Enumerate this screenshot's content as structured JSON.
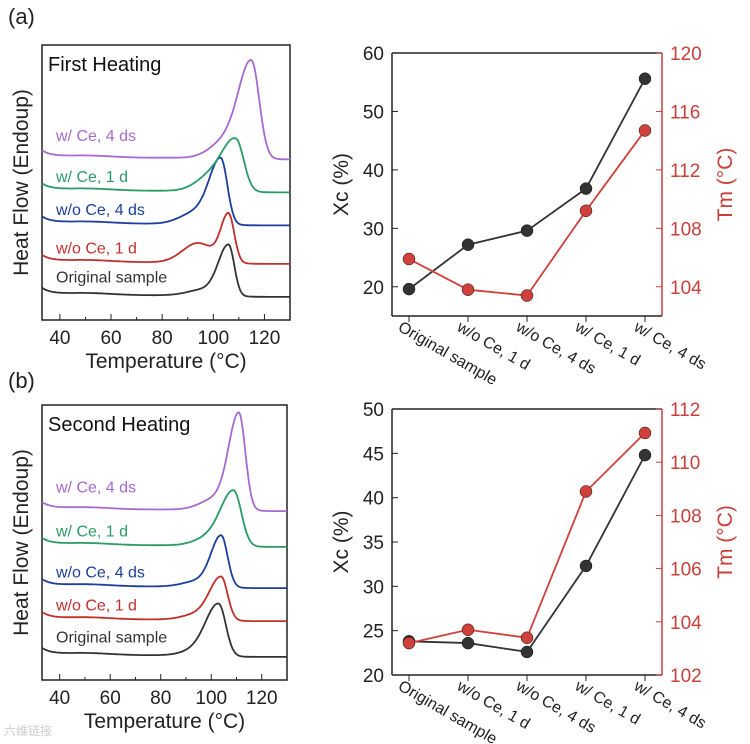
{
  "panels": [
    {
      "label": "(a)"
    },
    {
      "label": "(b)"
    }
  ],
  "watermark": "六维链接",
  "chart_data": [
    {
      "type": "line",
      "title": "First Heating",
      "xlabel": "Temperature (°C)",
      "ylabel": "Heat Flow (Endoup)",
      "xlim": [
        33,
        130
      ],
      "xticks": [
        40,
        60,
        80,
        100,
        120
      ],
      "ylim": [
        0,
        100
      ],
      "series": [
        {
          "name": "Original sample",
          "color": "#333333",
          "offset": 9,
          "peak_temp": 106,
          "peak_height": 18,
          "sigma_left": 4,
          "sigma_right": 2.2,
          "shoulder_temp": 96,
          "shoulder_height": 2
        },
        {
          "name": "w/o Ce, 1 d",
          "color": "#c0302c",
          "offset": 21,
          "peak_temp": 106,
          "peak_height": 17,
          "sigma_left": 3,
          "sigma_right": 2.2,
          "shoulder_temp": 94,
          "shoulder_height": 7
        },
        {
          "name": "w/o Ce, 4 ds",
          "color": "#1c3f9c",
          "offset": 35,
          "peak_temp": 103,
          "peak_height": 23,
          "sigma_left": 4.5,
          "sigma_right": 2.5,
          "shoulder_temp": 93,
          "shoulder_height": 4
        },
        {
          "name": "w/ Ce, 1 d",
          "color": "#2a9a68",
          "offset": 47,
          "peak_temp": 109,
          "peak_height": 17,
          "sigma_left": 5,
          "sigma_right": 3,
          "shoulder_temp": 100,
          "shoulder_height": 6
        },
        {
          "name": "w/ Ce, 4 ds",
          "color": "#a66ad0",
          "offset": 59,
          "peak_temp": 115,
          "peak_height": 34,
          "sigma_left": 5,
          "sigma_right": 3,
          "shoulder_temp": 105,
          "shoulder_height": 6
        }
      ]
    },
    {
      "type": "line",
      "categories": [
        "Original sample",
        "w/o Ce, 1 d",
        "w/o Ce, 4 ds",
        "w/ Ce, 1 d",
        "w/ Ce, 4 ds"
      ],
      "ylabel": "Xc (%)",
      "ylim": [
        15,
        60
      ],
      "yticks": [
        20,
        30,
        40,
        50,
        60
      ],
      "y2label": "Tm (°C)",
      "y2lim": [
        102,
        120
      ],
      "y2ticks": [
        104,
        108,
        112,
        116,
        120
      ],
      "series": [
        {
          "name": "Xc",
          "axis": "left",
          "color": "#333333",
          "values": [
            19.6,
            27.2,
            29.6,
            36.8,
            55.6
          ]
        },
        {
          "name": "Tm",
          "axis": "right",
          "color": "#d0413c",
          "values": [
            105.9,
            103.8,
            103.4,
            109.2,
            114.7
          ]
        }
      ]
    },
    {
      "type": "line",
      "title": "Second Heating",
      "xlabel": "Temperature (°C)",
      "ylabel": "Heat Flow (Endoup)",
      "xlim": [
        33,
        130
      ],
      "xticks": [
        40,
        60,
        80,
        100,
        120
      ],
      "ylim": [
        0,
        100
      ],
      "series": [
        {
          "name": "Original sample",
          "color": "#333333",
          "offset": 9,
          "peak_temp": 103,
          "peak_height": 18,
          "sigma_left": 5,
          "sigma_right": 2.8,
          "shoulder_temp": 95,
          "shoulder_height": 2
        },
        {
          "name": "w/o Ce, 1 d",
          "color": "#c0302c",
          "offset": 22,
          "peak_temp": 104,
          "peak_height": 15,
          "sigma_left": 4.5,
          "sigma_right": 2.5,
          "shoulder_temp": 95,
          "shoulder_height": 2
        },
        {
          "name": "w/o Ce, 4 ds",
          "color": "#1c3f9c",
          "offset": 34,
          "peak_temp": 104,
          "peak_height": 18,
          "sigma_left": 4,
          "sigma_right": 2.5,
          "shoulder_temp": 95,
          "shoulder_height": 2
        },
        {
          "name": "w/ Ce, 1 d",
          "color": "#2a9a68",
          "offset": 49,
          "peak_temp": 109,
          "peak_height": 19,
          "sigma_left": 5,
          "sigma_right": 3,
          "shoulder_temp": 100,
          "shoulder_height": 3
        },
        {
          "name": "w/ Ce, 4 ds",
          "color": "#a66ad0",
          "offset": 62,
          "peak_temp": 111,
          "peak_height": 34,
          "sigma_left": 4,
          "sigma_right": 2.5,
          "shoulder_temp": 102,
          "shoulder_height": 4
        }
      ]
    },
    {
      "type": "line",
      "categories": [
        "Original sample",
        "w/o Ce, 1 d",
        "w/o Ce, 4 ds",
        "w/ Ce, 1 d",
        "w/ Ce, 4 ds"
      ],
      "ylabel": "Xc (%)",
      "ylim": [
        20,
        50
      ],
      "yticks": [
        20,
        25,
        30,
        35,
        40,
        45,
        50
      ],
      "y2label": "Tm (°C)",
      "y2lim": [
        102,
        112
      ],
      "y2ticks": [
        102,
        104,
        106,
        108,
        110,
        112
      ],
      "series": [
        {
          "name": "Xc",
          "axis": "left",
          "color": "#333333",
          "values": [
            23.8,
            23.6,
            22.6,
            32.3,
            44.8
          ]
        },
        {
          "name": "Tm",
          "axis": "right",
          "color": "#d0413c",
          "values": [
            103.2,
            103.7,
            103.4,
            108.9,
            111.1
          ]
        }
      ]
    }
  ]
}
